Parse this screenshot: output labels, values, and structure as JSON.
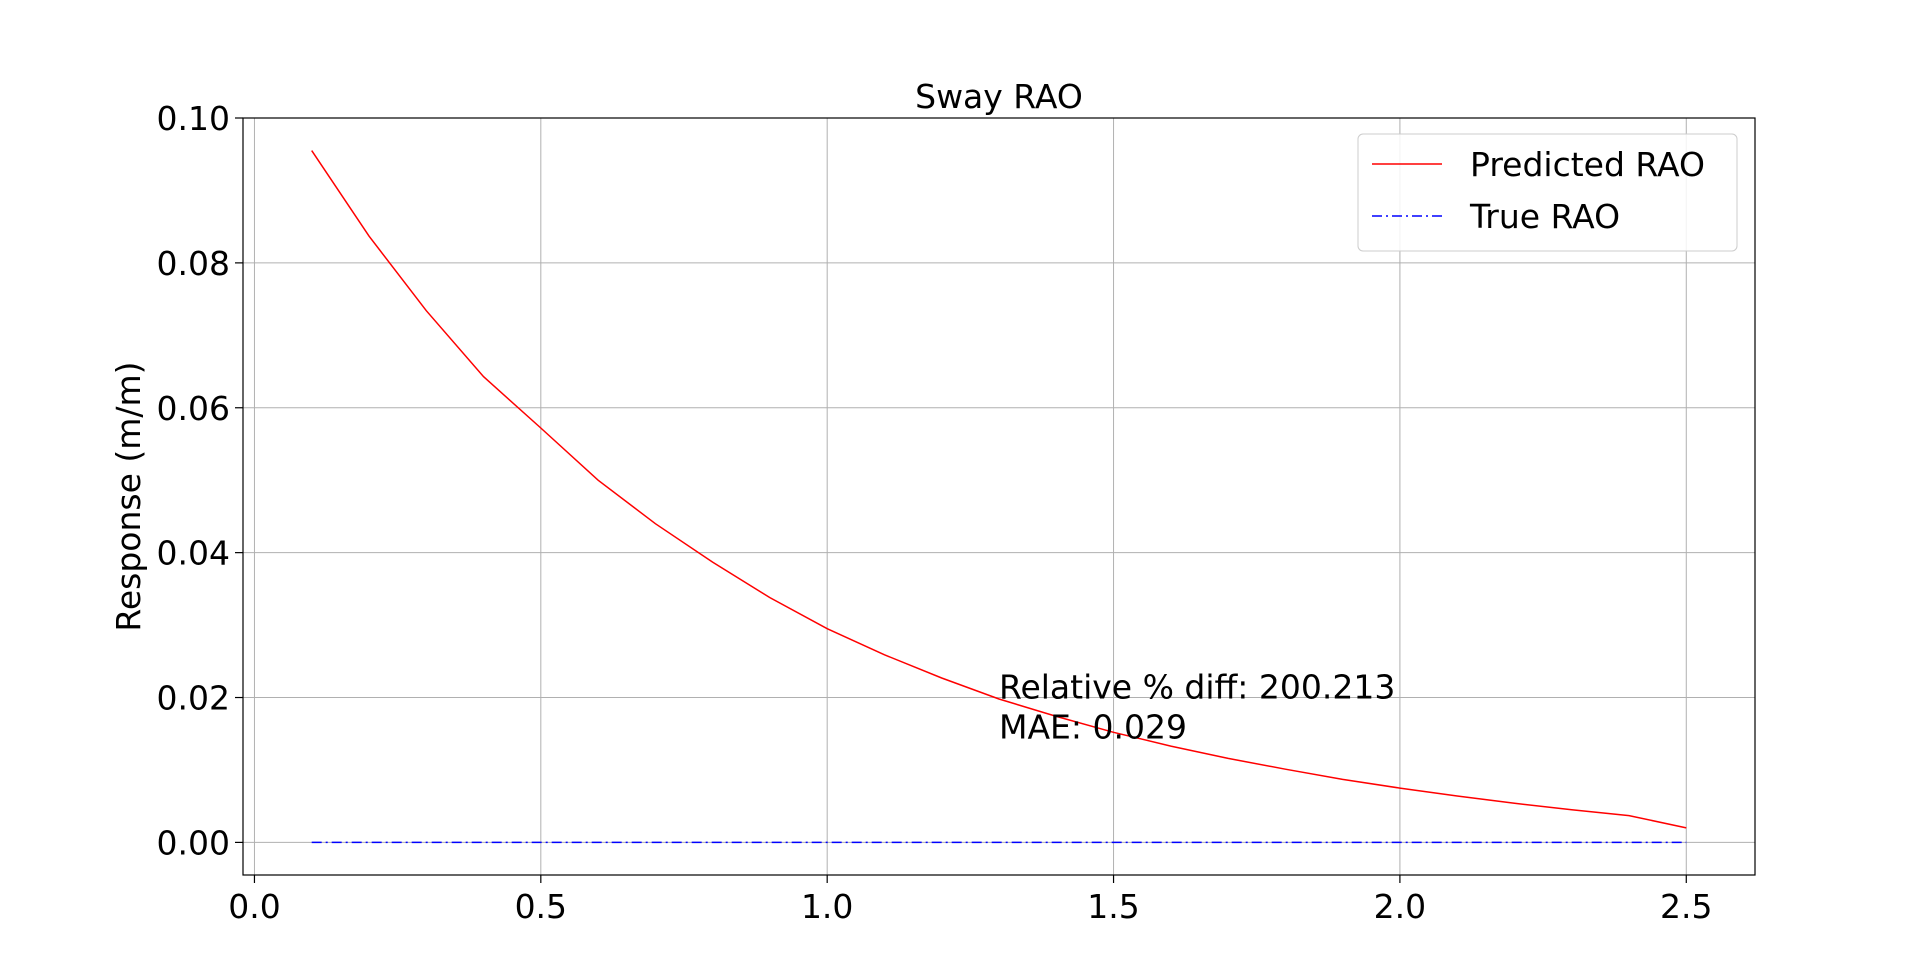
{
  "chart_data": {
    "type": "line",
    "title": "Sway RAO",
    "xlabel": "",
    "ylabel": "Response (m/m)",
    "xlim": [
      -0.02,
      2.62
    ],
    "ylim": [
      -0.0045,
      0.1
    ],
    "xticks": [
      0.0,
      0.5,
      1.0,
      1.5,
      2.0,
      2.5
    ],
    "xtick_labels": [
      "0.0",
      "0.5",
      "1.0",
      "1.5",
      "2.0",
      "2.5"
    ],
    "yticks": [
      0.0,
      0.02,
      0.04,
      0.06,
      0.08,
      0.1
    ],
    "ytick_labels": [
      "0.00",
      "0.02",
      "0.04",
      "0.06",
      "0.08",
      "0.10"
    ],
    "grid": true,
    "legend_position": "upper-right",
    "x": [
      0.1,
      0.2,
      0.3,
      0.4,
      0.5,
      0.6,
      0.7,
      0.8,
      0.9,
      1.0,
      1.1,
      1.2,
      1.3,
      1.4,
      1.5,
      1.6,
      1.7,
      1.8,
      1.9,
      2.0,
      2.1,
      2.2,
      2.3,
      2.4,
      2.5
    ],
    "series": [
      {
        "name": "Predicted RAO",
        "color": "#ff0000",
        "linestyle": "solid",
        "values": [
          0.0955,
          0.0837,
          0.0734,
          0.0643,
          0.0572,
          0.05,
          0.044,
          0.0387,
          0.0338,
          0.0295,
          0.0259,
          0.0227,
          0.0198,
          0.0174,
          0.0152,
          0.0133,
          0.0116,
          0.0101,
          0.0087,
          0.0075,
          0.0064,
          0.0054,
          0.0045,
          0.0037,
          0.002
        ]
      },
      {
        "name": "True RAO",
        "color": "#0000ff",
        "linestyle": "dashdot",
        "values": [
          0.0,
          0.0,
          0.0,
          0.0,
          0.0,
          0.0,
          0.0,
          0.0,
          0.0,
          0.0,
          0.0,
          0.0,
          0.0,
          0.0,
          0.0,
          0.0,
          0.0,
          0.0,
          0.0,
          0.0,
          0.0,
          0.0,
          0.0,
          0.0,
          0.0
        ]
      }
    ],
    "annotations": [
      {
        "text": "Relative % diff: 200.213",
        "x": 1.3,
        "y": 0.0215
      },
      {
        "text": "MAE: 0.029",
        "x": 1.3,
        "y": 0.016
      }
    ]
  }
}
